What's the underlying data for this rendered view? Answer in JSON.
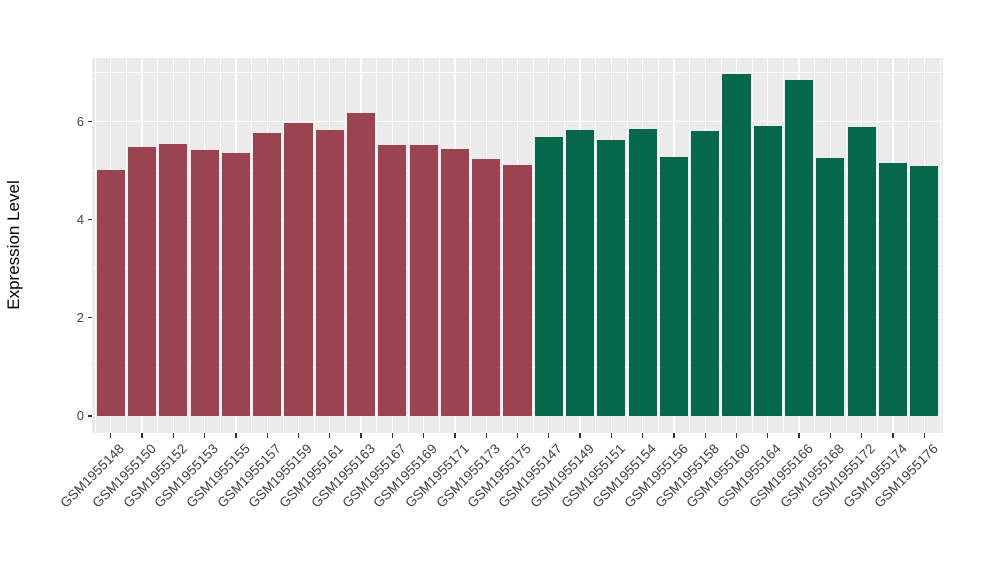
{
  "chart_data": {
    "type": "bar",
    "title": "",
    "xlabel": "",
    "ylabel": "Expression Level",
    "ylim": [
      -0.35,
      7.3
    ],
    "yticks": [
      0,
      2,
      4,
      6
    ],
    "yticks_minor": [
      1,
      3,
      5,
      7
    ],
    "grid": "major+minor white on gray panel",
    "legend_position": "none",
    "panel_background": "#EBEBEB",
    "gridline_color": "#FFFFFF",
    "tick_color": "#333333",
    "group_colors": {
      "groupA": "#9B4351",
      "groupB": "#06684A"
    },
    "categories": [
      "GSM1955148",
      "GSM1955150",
      "GSM1955152",
      "GSM1955153",
      "GSM1955155",
      "GSM1955157",
      "GSM1955159",
      "GSM1955161",
      "GSM1955163",
      "GSM1955167",
      "GSM1955169",
      "GSM1955171",
      "GSM1955173",
      "GSM1955175",
      "GSM1955147",
      "GSM1955149",
      "GSM1955151",
      "GSM1955154",
      "GSM1955156",
      "GSM1955158",
      "GSM1955160",
      "GSM1955164",
      "GSM1955166",
      "GSM1955168",
      "GSM1955172",
      "GSM1955174",
      "GSM1955176"
    ],
    "values": [
      5.02,
      5.48,
      5.54,
      5.43,
      5.37,
      5.78,
      5.98,
      5.83,
      6.17,
      5.52,
      5.52,
      5.45,
      5.24,
      5.11,
      5.69,
      5.83,
      5.62,
      5.85,
      5.28,
      5.82,
      6.97,
      5.92,
      6.85,
      5.27,
      5.89,
      5.16,
      5.09
    ],
    "groups": [
      "groupA",
      "groupA",
      "groupA",
      "groupA",
      "groupA",
      "groupA",
      "groupA",
      "groupA",
      "groupA",
      "groupA",
      "groupA",
      "groupA",
      "groupA",
      "groupA",
      "groupB",
      "groupB",
      "groupB",
      "groupB",
      "groupB",
      "groupB",
      "groupB",
      "groupB",
      "groupB",
      "groupB",
      "groupB",
      "groupB",
      "groupB"
    ]
  }
}
